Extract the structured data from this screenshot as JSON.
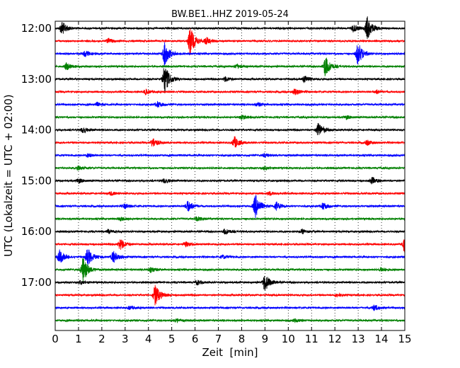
{
  "chart_data": {
    "type": "line",
    "title": "BW.BE1..HHZ 2019-05-24",
    "xlabel": "Zeit  [min]",
    "ylabel": "UTC (Lokalzeit = UTC + 02:00)",
    "xlim": [
      0,
      15
    ],
    "x_ticks": [
      0,
      1,
      2,
      3,
      4,
      5,
      6,
      7,
      8,
      9,
      10,
      11,
      12,
      13,
      14,
      15
    ],
    "y_ticks": [
      {
        "label": "12:00",
        "trace": 0
      },
      {
        "label": "13:00",
        "trace": 4
      },
      {
        "label": "14:00",
        "trace": 8
      },
      {
        "label": "15:00",
        "trace": 12
      },
      {
        "label": "16:00",
        "trace": 16
      },
      {
        "label": "17:00",
        "trace": 20
      }
    ],
    "trace_interval_min": 15,
    "grid": "vertical dotted",
    "colors": [
      "#000000",
      "#ff0000",
      "#0000ff",
      "#008000"
    ],
    "traces": [
      {
        "start": "12:00",
        "events": [
          [
            0.3,
            0.6
          ],
          [
            13.4,
            1.0
          ],
          [
            12.8,
            0.3
          ]
        ]
      },
      {
        "start": "12:15",
        "events": [
          [
            5.8,
            1.2
          ],
          [
            6.5,
            0.3
          ],
          [
            2.3,
            0.2
          ]
        ]
      },
      {
        "start": "12:30",
        "events": [
          [
            4.7,
            1.1
          ],
          [
            13.0,
            1.0
          ],
          [
            1.3,
            0.25
          ]
        ]
      },
      {
        "start": "12:45",
        "events": [
          [
            11.6,
            0.9
          ],
          [
            0.5,
            0.3
          ],
          [
            7.8,
            0.2
          ]
        ]
      },
      {
        "start": "13:00",
        "events": [
          [
            4.7,
            1.3
          ],
          [
            10.7,
            0.3
          ],
          [
            7.3,
            0.2
          ]
        ]
      },
      {
        "start": "13:15",
        "events": [
          [
            10.3,
            0.3
          ],
          [
            3.9,
            0.2
          ],
          [
            13.8,
            0.15
          ]
        ]
      },
      {
        "start": "13:30",
        "events": [
          [
            4.4,
            0.25
          ],
          [
            1.8,
            0.15
          ],
          [
            8.7,
            0.15
          ]
        ]
      },
      {
        "start": "13:45",
        "events": [
          [
            8.0,
            0.2
          ],
          [
            12.5,
            0.15
          ]
        ]
      },
      {
        "start": "14:00",
        "events": [
          [
            11.3,
            0.6
          ],
          [
            1.2,
            0.25
          ]
        ]
      },
      {
        "start": "14:15",
        "events": [
          [
            4.2,
            0.4
          ],
          [
            7.7,
            0.5
          ],
          [
            13.4,
            0.2
          ]
        ]
      },
      {
        "start": "14:30",
        "events": [
          [
            9.0,
            0.15
          ],
          [
            1.4,
            0.15
          ]
        ]
      },
      {
        "start": "14:45",
        "events": [
          [
            1.0,
            0.2
          ],
          [
            9.0,
            0.15
          ]
        ]
      },
      {
        "start": "15:00",
        "events": [
          [
            1.0,
            0.2
          ],
          [
            4.7,
            0.2
          ],
          [
            13.6,
            0.3
          ]
        ]
      },
      {
        "start": "15:15",
        "events": [
          [
            2.4,
            0.15
          ],
          [
            9.2,
            0.15
          ]
        ]
      },
      {
        "start": "15:30",
        "events": [
          [
            8.6,
            1.0
          ],
          [
            5.7,
            0.5
          ],
          [
            9.5,
            0.35
          ],
          [
            11.5,
            0.3
          ],
          [
            3.0,
            0.2
          ]
        ]
      },
      {
        "start": "15:45",
        "events": [
          [
            6.1,
            0.2
          ],
          [
            2.8,
            0.15
          ]
        ]
      },
      {
        "start": "16:00",
        "events": [
          [
            7.3,
            0.25
          ],
          [
            10.6,
            0.2
          ],
          [
            2.3,
            0.15
          ]
        ]
      },
      {
        "start": "16:15",
        "events": [
          [
            2.8,
            0.5
          ],
          [
            15.0,
            0.7
          ],
          [
            5.6,
            0.2
          ]
        ]
      },
      {
        "start": "16:30",
        "events": [
          [
            1.4,
            0.8
          ],
          [
            0.2,
            0.6
          ],
          [
            2.5,
            0.5
          ],
          [
            7.2,
            0.15
          ]
        ]
      },
      {
        "start": "16:45",
        "events": [
          [
            1.2,
            1.1
          ],
          [
            4.1,
            0.25
          ],
          [
            14.0,
            0.2
          ]
        ]
      },
      {
        "start": "17:00",
        "events": [
          [
            9.0,
            0.8
          ],
          [
            6.1,
            0.2
          ],
          [
            1.1,
            0.15
          ]
        ]
      },
      {
        "start": "17:15",
        "events": [
          [
            4.3,
            0.9
          ],
          [
            12.1,
            0.15
          ]
        ]
      },
      {
        "start": "17:30",
        "events": [
          [
            13.7,
            0.25
          ],
          [
            3.2,
            0.15
          ]
        ]
      },
      {
        "start": "17:45",
        "events": [
          [
            5.2,
            0.15
          ],
          [
            10.3,
            0.15
          ]
        ]
      }
    ]
  }
}
